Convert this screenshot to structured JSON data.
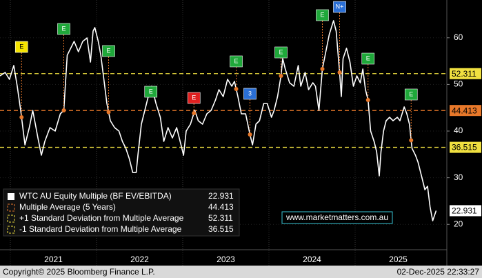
{
  "chart_data": {
    "type": "line",
    "x": [
      2020.88,
      2020.94,
      2020.99,
      2021.04,
      2021.08,
      2021.12,
      2021.17,
      2021.22,
      2021.26,
      2021.32,
      2021.36,
      2021.4,
      2021.46,
      2021.52,
      2021.58,
      2021.62,
      2021.66,
      2021.7,
      2021.74,
      2021.79,
      2021.84,
      2021.89,
      2021.93,
      2021.96,
      2021.98,
      2022.02,
      2022.05,
      2022.08,
      2022.12,
      2022.16,
      2022.21,
      2022.26,
      2022.3,
      2022.34,
      2022.38,
      2022.42,
      2022.46,
      2022.48,
      2022.52,
      2022.56,
      2022.6,
      2022.64,
      2022.69,
      2022.74,
      2022.78,
      2022.83,
      2022.88,
      2022.93,
      2022.98,
      2023.01,
      2023.04,
      2023.09,
      2023.14,
      2023.18,
      2023.23,
      2023.28,
      2023.33,
      2023.38,
      2023.42,
      2023.47,
      2023.52,
      2023.57,
      2023.6,
      2023.64,
      2023.68,
      2023.73,
      2023.78,
      2023.81,
      2023.85,
      2023.89,
      2023.94,
      2023.98,
      2024.03,
      2024.06,
      2024.1,
      2024.14,
      2024.16,
      2024.19,
      2024.24,
      2024.29,
      2024.34,
      2024.37,
      2024.42,
      2024.46,
      2024.51,
      2024.54,
      2024.58,
      2024.6,
      2024.62,
      2024.66,
      2024.7,
      2024.75,
      2024.78,
      2024.82,
      2024.84,
      2024.86,
      2024.9,
      2024.94,
      2024.98,
      2025.02,
      2025.06,
      2025.09,
      2025.12,
      2025.15,
      2025.18,
      2025.22,
      2025.25,
      2025.28,
      2025.3,
      2025.33,
      2025.36,
      2025.4,
      2025.44,
      2025.49,
      2025.52,
      2025.57,
      2025.6,
      2025.63,
      2025.66,
      2025.7,
      2025.73,
      2025.78,
      2025.81,
      2025.84,
      2025.87,
      2025.9,
      2025.94
    ],
    "series": [
      {
        "name": "WTC AU Equity Multiple (BF EV/EBITDA)",
        "color": "#ffffff",
        "values": [
          51.83,
          52.57,
          51.09,
          54.05,
          49.61,
          44.44,
          37.04,
          40.74,
          44.44,
          38.52,
          34.82,
          37.78,
          40.74,
          40.0,
          43.7,
          44.44,
          56.27,
          57.75,
          59.23,
          57.01,
          59.23,
          59.97,
          54.79,
          61.44,
          62.18,
          59.23,
          56.27,
          51.83,
          45.91,
          42.22,
          40.74,
          40.0,
          37.78,
          36.3,
          34.08,
          31.12,
          31.12,
          34.82,
          41.48,
          44.44,
          47.39,
          49.61,
          45.91,
          42.96,
          37.78,
          40.74,
          38.52,
          40.74,
          37.04,
          34.82,
          40.0,
          41.48,
          44.44,
          42.22,
          41.48,
          43.7,
          44.44,
          46.65,
          48.87,
          47.39,
          51.09,
          49.61,
          50.65,
          47.39,
          43.7,
          43.7,
          39.26,
          37.04,
          41.48,
          42.22,
          45.91,
          45.91,
          42.96,
          44.44,
          47.39,
          51.83,
          55.53,
          53.31,
          50.35,
          49.61,
          54.05,
          49.61,
          52.57,
          48.87,
          50.35,
          49.61,
          44.44,
          48.87,
          53.31,
          57.01,
          60.7,
          63.66,
          61.44,
          52.57,
          47.39,
          55.53,
          57.75,
          54.79,
          49.61,
          51.83,
          50.35,
          53.31,
          48.87,
          46.65,
          40.0,
          37.78,
          35.56,
          30.39,
          35.56,
          40.0,
          42.22,
          42.96,
          42.22,
          42.96,
          42.22,
          45.18,
          43.7,
          41.48,
          36.3,
          34.82,
          33.34,
          29.65,
          27.43,
          28.17,
          23.73,
          20.77,
          22.931
        ]
      }
    ],
    "reference_lines": [
      {
        "name": "Multiple Average (5 Years)",
        "value": 44.413,
        "color": "#e8782a"
      },
      {
        "name": "+1 Standard Deviation from Multiple Average",
        "value": 52.311,
        "color": "#f0e040"
      },
      {
        "name": "-1 Standard Deviation from Multiple Average",
        "value": 36.515,
        "color": "#f0e040"
      }
    ],
    "annotations": [
      {
        "label": "E",
        "x": 2021.13,
        "y": 58.04,
        "color": "#f5e400"
      },
      {
        "label": "E",
        "x": 2021.62,
        "y": 61.89,
        "color": "#1fa83a"
      },
      {
        "label": "E",
        "x": 2022.14,
        "y": 57.16,
        "color": "#1fa83a"
      },
      {
        "label": "E",
        "x": 2022.63,
        "y": 48.43,
        "color": "#1fa83a"
      },
      {
        "label": "E",
        "x": 2023.13,
        "y": 47.1,
        "color": "#e02020"
      },
      {
        "label": "E",
        "x": 2023.62,
        "y": 54.94,
        "color": "#1fa83a"
      },
      {
        "label": "3",
        "x": 2023.78,
        "y": 47.99,
        "color": "#2a6fd6"
      },
      {
        "label": "E",
        "x": 2024.14,
        "y": 56.86,
        "color": "#1fa83a"
      },
      {
        "label": "E",
        "x": 2024.62,
        "y": 64.85,
        "color": "#1fa83a"
      },
      {
        "label": "N+",
        "x": 2024.82,
        "y": 66.62,
        "color": "#2a6fd6"
      },
      {
        "label": "E",
        "x": 2025.15,
        "y": 55.53,
        "color": "#1fa83a"
      },
      {
        "label": "E",
        "x": 2025.65,
        "y": 47.84,
        "color": "#1fa83a"
      }
    ],
    "xlim": [
      2020.88,
      2026.064
    ],
    "xticks": [
      2021,
      2022,
      2023,
      2024,
      2025
    ],
    "ylim": [
      15.6,
      68.1
    ],
    "yticks": [
      20,
      30,
      40,
      50,
      60
    ],
    "watermark": "www.marketmatters.com.au",
    "copyright": "Copyright© 2025 Bloomberg Finance L.P.",
    "timestamp": "02-Dec-2025 22:33:27"
  }
}
